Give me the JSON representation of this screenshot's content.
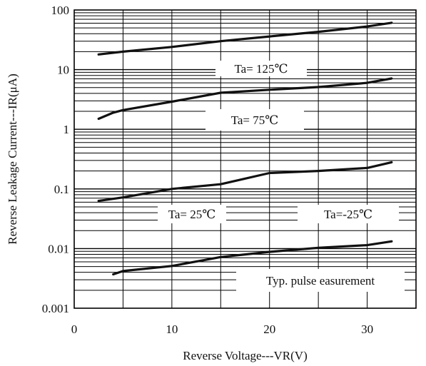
{
  "chart_data": {
    "type": "line",
    "title": "",
    "xlabel": "Reverse Voltage---VR(V)",
    "ylabel": "Reverse Leakage Current---IR(μA)",
    "xlim": [
      0,
      35
    ],
    "ylim": [
      0.001,
      100
    ],
    "yscale": "log",
    "grid": true,
    "x_ticks": [
      0,
      10,
      20,
      30
    ],
    "x_tick_labels": [
      "0",
      "10",
      "20",
      "30"
    ],
    "y_ticks": [
      0.001,
      0.01,
      0.1,
      1,
      10,
      100
    ],
    "y_tick_labels": [
      "0.001",
      "0.01",
      "0.1",
      "1",
      "10",
      "100"
    ],
    "series": [
      {
        "name": "Ta= 125℃",
        "x": [
          2.5,
          5,
          10,
          15,
          20,
          25,
          30,
          32.5
        ],
        "y": [
          18,
          20,
          24,
          30,
          36,
          43,
          53,
          61
        ]
      },
      {
        "name": "Ta= 75℃",
        "x": [
          2.5,
          4,
          5,
          10,
          15,
          20,
          25,
          30,
          32.5
        ],
        "y": [
          1.5,
          1.9,
          2.1,
          2.9,
          4.1,
          4.6,
          5.1,
          6.0,
          7.1
        ]
      },
      {
        "name": "Ta= 25℃",
        "x": [
          2.5,
          5,
          10,
          15,
          20,
          25,
          30,
          32.5
        ],
        "y": [
          0.063,
          0.072,
          0.1,
          0.12,
          0.185,
          0.2,
          0.225,
          0.28
        ]
      },
      {
        "name": "Ta=-25℃",
        "x": [
          4,
          5,
          10,
          15,
          20,
          25,
          30,
          32.5
        ],
        "y": [
          0.0037,
          0.0042,
          0.0051,
          0.0072,
          0.0088,
          0.0103,
          0.0114,
          0.0132
        ]
      }
    ],
    "annotations": [
      {
        "key": "t125",
        "text": "Ta= 125℃"
      },
      {
        "key": "t75",
        "text": "Ta= 75℃"
      },
      {
        "key": "t25",
        "text": "Ta= 25℃"
      },
      {
        "key": "tm25",
        "text": "Ta=-25℃"
      },
      {
        "key": "pulse",
        "text": "Typ. pulse easurement"
      }
    ]
  }
}
